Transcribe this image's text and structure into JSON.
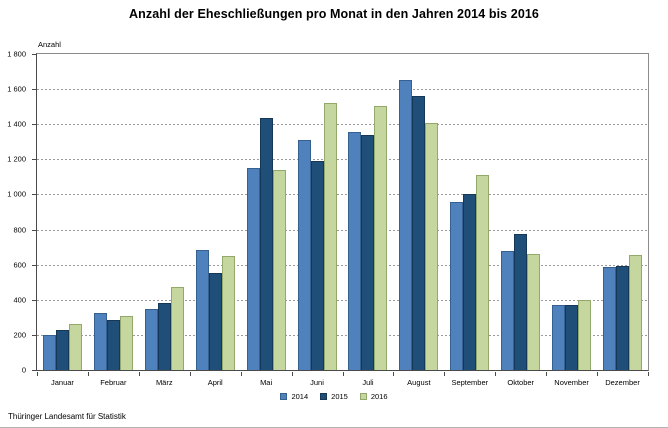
{
  "title": "Anzahl der Eheschließungen pro Monat in den Jahren 2014 bis 2016",
  "footer": "Thüringer Landesamt für Statistik",
  "chart_data": {
    "type": "bar",
    "title": "Anzahl der Eheschließungen pro Monat in den Jahren 2014 bis 2016",
    "xlabel": "",
    "ylabel": "Anzahl",
    "ylim": [
      0,
      1800
    ],
    "grid": "horizontal dashed every 200",
    "legend_position": "bottom center",
    "categories": [
      "Januar",
      "Februar",
      "März",
      "April",
      "Mai",
      "Juni",
      "Juli",
      "August",
      "September",
      "Oktober",
      "November",
      "Dezember"
    ],
    "series": [
      {
        "name": "2014",
        "color": "#4f81bd",
        "border": "#35608f",
        "values": [
          200,
          325,
          350,
          685,
          1150,
          1310,
          1355,
          1650,
          955,
          680,
          370,
          585
        ]
      },
      {
        "name": "2015",
        "color": "#1f4e79",
        "border": "#163756",
        "values": [
          225,
          285,
          380,
          550,
          1435,
          1190,
          1340,
          1560,
          1005,
          775,
          370,
          595
        ]
      },
      {
        "name": "2016",
        "color": "#c5d69f",
        "border": "#93a86b",
        "values": [
          260,
          310,
          470,
          650,
          1140,
          1520,
          1505,
          1405,
          1110,
          660,
          400,
          655
        ]
      }
    ],
    "yticks": [
      0,
      200,
      400,
      600,
      800,
      1000,
      1200,
      1400,
      1600,
      1800
    ],
    "ytick_labels": [
      "0",
      "200",
      "400",
      "600",
      "800",
      "1 000",
      "1 200",
      "1 400",
      "1 600",
      "1 800"
    ]
  }
}
